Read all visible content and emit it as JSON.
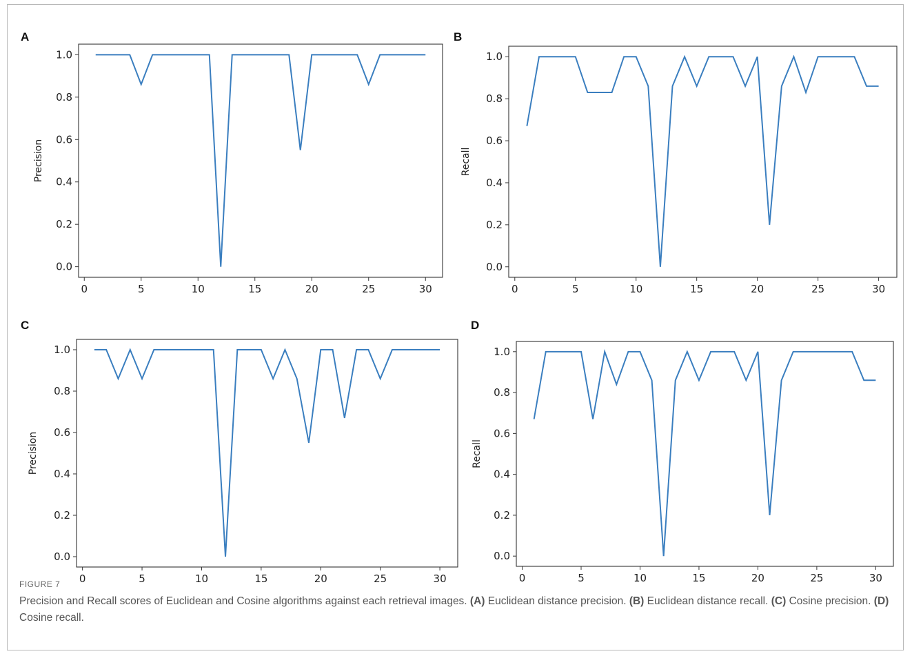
{
  "figure": {
    "label": "FIGURE 7",
    "caption_segments": [
      {
        "text": "Precision and Recall scores of Euclidean and Cosine algorithms against each retrieval images. ",
        "bold": false
      },
      {
        "text": "(A)",
        "bold": true
      },
      {
        "text": " Euclidean distance precision. ",
        "bold": false
      },
      {
        "text": "(B)",
        "bold": true
      },
      {
        "text": " Euclidean distance recall. ",
        "bold": false
      },
      {
        "text": "(C)",
        "bold": true
      },
      {
        "text": " Cosine precision. ",
        "bold": false
      },
      {
        "text": "(D)",
        "bold": true
      },
      {
        "text": " Cosine recall.",
        "bold": false
      }
    ]
  },
  "colors": {
    "line": "#3a7ebf",
    "axes": "#333333"
  },
  "chart_data": [
    {
      "panel": "A",
      "type": "line",
      "title": "",
      "xlabel": "",
      "ylabel": "Precision",
      "xlim": [
        -0.5,
        31.5
      ],
      "ylim": [
        -0.05,
        1.05
      ],
      "xticks": [
        0,
        5,
        10,
        15,
        20,
        25,
        30
      ],
      "yticks": [
        0.0,
        0.2,
        0.4,
        0.6,
        0.8,
        1.0
      ],
      "grid": false,
      "x": [
        1,
        2,
        3,
        4,
        5,
        6,
        7,
        8,
        9,
        10,
        11,
        12,
        13,
        14,
        15,
        16,
        17,
        18,
        19,
        20,
        21,
        22,
        23,
        24,
        25,
        26,
        27,
        28,
        29,
        30
      ],
      "y": [
        1.0,
        1.0,
        1.0,
        1.0,
        0.86,
        1.0,
        1.0,
        1.0,
        1.0,
        1.0,
        1.0,
        0.0,
        1.0,
        1.0,
        1.0,
        1.0,
        1.0,
        1.0,
        0.55,
        1.0,
        1.0,
        1.0,
        1.0,
        1.0,
        0.86,
        1.0,
        1.0,
        1.0,
        1.0,
        1.0
      ]
    },
    {
      "panel": "B",
      "type": "line",
      "title": "",
      "xlabel": "",
      "ylabel": "Recall",
      "xlim": [
        -0.5,
        31.5
      ],
      "ylim": [
        -0.05,
        1.05
      ],
      "xticks": [
        0,
        5,
        10,
        15,
        20,
        25,
        30
      ],
      "yticks": [
        0.0,
        0.2,
        0.4,
        0.6,
        0.8,
        1.0
      ],
      "grid": false,
      "x": [
        1,
        2,
        3,
        4,
        5,
        6,
        7,
        8,
        9,
        10,
        11,
        12,
        13,
        14,
        15,
        16,
        17,
        18,
        19,
        20,
        21,
        22,
        23,
        24,
        25,
        26,
        27,
        28,
        29,
        30
      ],
      "y": [
        0.67,
        1.0,
        1.0,
        1.0,
        1.0,
        0.83,
        0.83,
        0.83,
        1.0,
        1.0,
        0.86,
        0.0,
        0.86,
        1.0,
        0.86,
        1.0,
        1.0,
        1.0,
        0.86,
        1.0,
        0.2,
        0.86,
        1.0,
        0.83,
        1.0,
        1.0,
        1.0,
        1.0,
        0.86,
        0.86
      ]
    },
    {
      "panel": "C",
      "type": "line",
      "title": "",
      "xlabel": "",
      "ylabel": "Precision",
      "xlim": [
        -0.5,
        31.5
      ],
      "ylim": [
        -0.05,
        1.05
      ],
      "xticks": [
        0,
        5,
        10,
        15,
        20,
        25,
        30
      ],
      "yticks": [
        0.0,
        0.2,
        0.4,
        0.6,
        0.8,
        1.0
      ],
      "grid": false,
      "x": [
        1,
        2,
        3,
        4,
        5,
        6,
        7,
        8,
        9,
        10,
        11,
        12,
        13,
        14,
        15,
        16,
        17,
        18,
        19,
        20,
        21,
        22,
        23,
        24,
        25,
        26,
        27,
        28,
        29,
        30
      ],
      "y": [
        1.0,
        1.0,
        0.86,
        1.0,
        0.86,
        1.0,
        1.0,
        1.0,
        1.0,
        1.0,
        1.0,
        0.0,
        1.0,
        1.0,
        1.0,
        0.86,
        1.0,
        0.86,
        0.55,
        1.0,
        1.0,
        0.67,
        1.0,
        1.0,
        0.86,
        1.0,
        1.0,
        1.0,
        1.0,
        1.0
      ]
    },
    {
      "panel": "D",
      "type": "line",
      "title": "",
      "xlabel": "",
      "ylabel": "Recall",
      "xlim": [
        -0.5,
        31.5
      ],
      "ylim": [
        -0.05,
        1.05
      ],
      "xticks": [
        0,
        5,
        10,
        15,
        20,
        25,
        30
      ],
      "yticks": [
        0.0,
        0.2,
        0.4,
        0.6,
        0.8,
        1.0
      ],
      "grid": false,
      "x": [
        1,
        2,
        3,
        4,
        5,
        6,
        7,
        8,
        9,
        10,
        11,
        12,
        13,
        14,
        15,
        16,
        17,
        18,
        19,
        20,
        21,
        22,
        23,
        24,
        25,
        26,
        27,
        28,
        29,
        30
      ],
      "y": [
        0.67,
        1.0,
        1.0,
        1.0,
        1.0,
        0.67,
        1.0,
        0.84,
        1.0,
        1.0,
        0.86,
        0.0,
        0.86,
        1.0,
        0.86,
        1.0,
        1.0,
        1.0,
        0.86,
        1.0,
        0.2,
        0.86,
        1.0,
        1.0,
        1.0,
        1.0,
        1.0,
        1.0,
        0.86,
        0.86
      ]
    }
  ]
}
